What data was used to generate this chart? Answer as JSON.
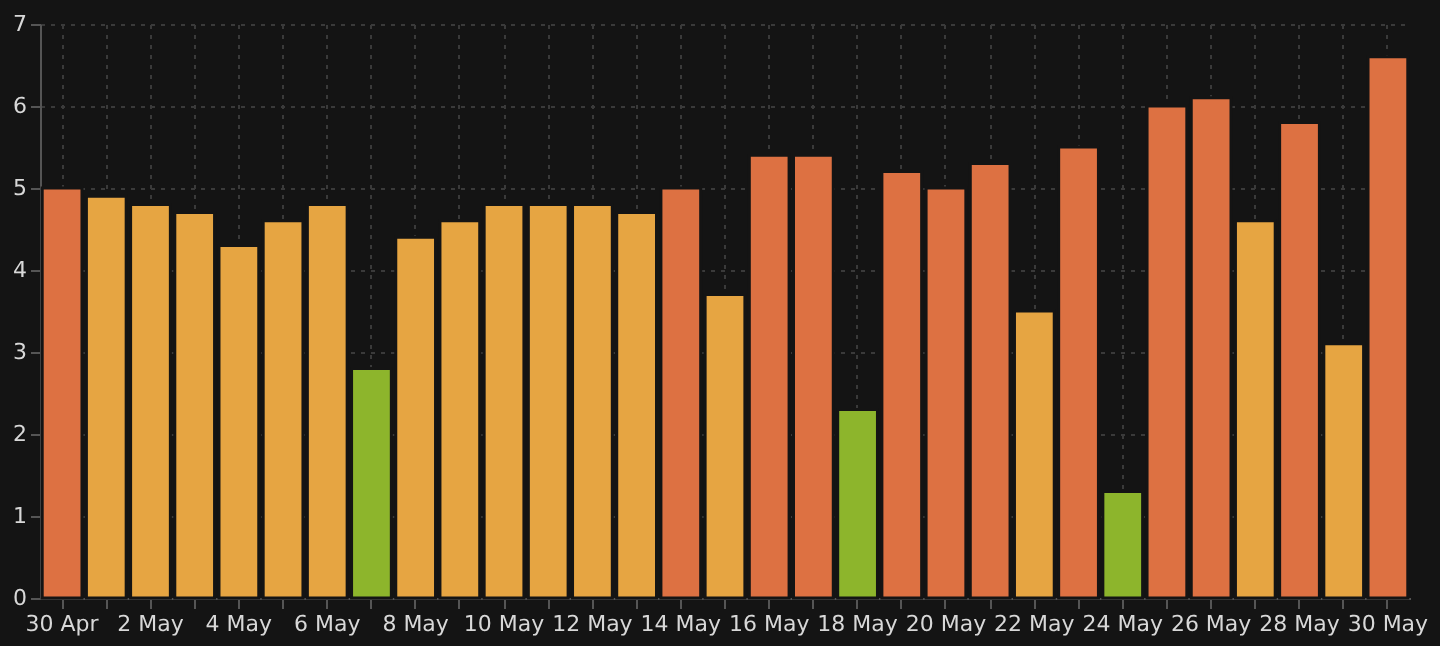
{
  "chart_data": {
    "type": "bar",
    "categories": [
      "30 Apr",
      null,
      "2 May",
      null,
      "4 May",
      null,
      "6 May",
      null,
      "8 May",
      null,
      "10 May",
      null,
      "12 May",
      null,
      "14 May",
      null,
      "16 May",
      null,
      "18 May",
      null,
      "20 May",
      null,
      "22 May",
      null,
      "24 May",
      null,
      "26 May",
      null,
      "28 May",
      null,
      "30 May"
    ],
    "values": [
      5.0,
      4.9,
      4.8,
      4.7,
      4.3,
      4.6,
      4.8,
      2.8,
      4.4,
      4.6,
      4.8,
      4.8,
      4.8,
      4.7,
      5.0,
      3.7,
      5.4,
      5.4,
      2.3,
      5.2,
      5.0,
      5.3,
      3.5,
      5.5,
      1.3,
      6.0,
      6.1,
      4.6,
      5.8,
      3.1,
      6.6
    ],
    "colors": [
      "#dd7142",
      "#e6a542",
      "#e6a542",
      "#e6a542",
      "#e6a542",
      "#e6a542",
      "#e6a542",
      "#8db52c",
      "#e6a542",
      "#e6a542",
      "#e6a542",
      "#e6a542",
      "#e6a542",
      "#e6a542",
      "#dd7142",
      "#e6a542",
      "#dd7142",
      "#dd7142",
      "#8db52c",
      "#dd7142",
      "#dd7142",
      "#dd7142",
      "#e6a542",
      "#dd7142",
      "#8db52c",
      "#dd7142",
      "#dd7142",
      "#e6a542",
      "#dd7142",
      "#e6a542",
      "#dd7142"
    ],
    "ylim": [
      0,
      7
    ],
    "yticks": [
      0,
      1,
      2,
      3,
      4,
      5,
      6,
      7
    ],
    "grid": true
  }
}
